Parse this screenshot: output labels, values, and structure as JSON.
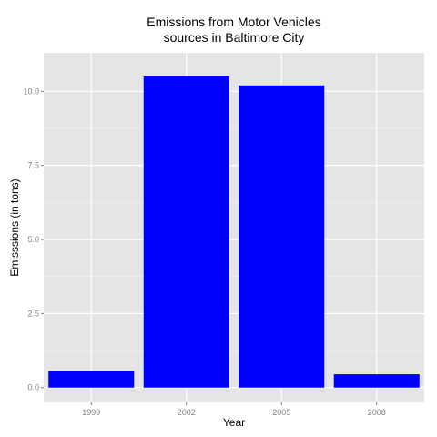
{
  "chart_data": {
    "type": "bar",
    "title_lines": [
      "Emissions from Motor Vehicles",
      "sources in Baltimore City"
    ],
    "xlabel": "Year",
    "ylabel": "Emisssions (in tons)",
    "categories": [
      "1999",
      "2002",
      "2005",
      "2008"
    ],
    "values": [
      0.55,
      10.5,
      10.2,
      0.45
    ],
    "ylim": [
      -0.5,
      11.3
    ],
    "yticks": [
      0,
      2.5,
      5,
      7.5,
      10
    ],
    "ytick_labels": [
      "0.0",
      "2.5",
      "5.0",
      "7.5",
      "10.0"
    ],
    "bar_color": "#0000ff",
    "panel_color": "#e5e5e5",
    "grid": true,
    "legend": "none"
  }
}
